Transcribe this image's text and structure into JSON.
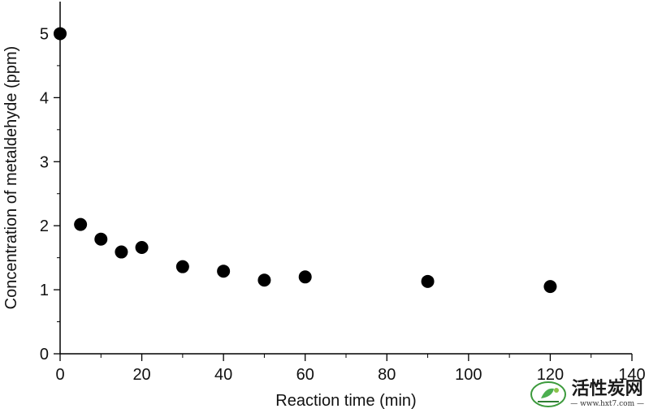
{
  "chart_data": {
    "type": "scatter",
    "title": "",
    "xlabel": "Reaction time (min)",
    "ylabel": "Concentration of metaldehyde (ppm)",
    "xlim": [
      0,
      140
    ],
    "ylim": [
      0,
      5.5
    ],
    "xticks": [
      0,
      20,
      40,
      60,
      80,
      100,
      120,
      140
    ],
    "yticks": [
      0,
      1,
      2,
      3,
      4,
      5
    ],
    "grid": false,
    "legend": "none",
    "series": [
      {
        "x": [
          0,
          5,
          10,
          15,
          20,
          30,
          40,
          50,
          60,
          90,
          120
        ],
        "y": [
          5.0,
          2.02,
          1.79,
          1.59,
          1.66,
          1.36,
          1.29,
          1.15,
          1.2,
          1.13,
          1.05
        ],
        "color": "#000000"
      }
    ]
  },
  "watermark": {
    "title": "活性炭网",
    "url": "— www.hxt7.com —",
    "icon": "leaf-logo-icon"
  }
}
